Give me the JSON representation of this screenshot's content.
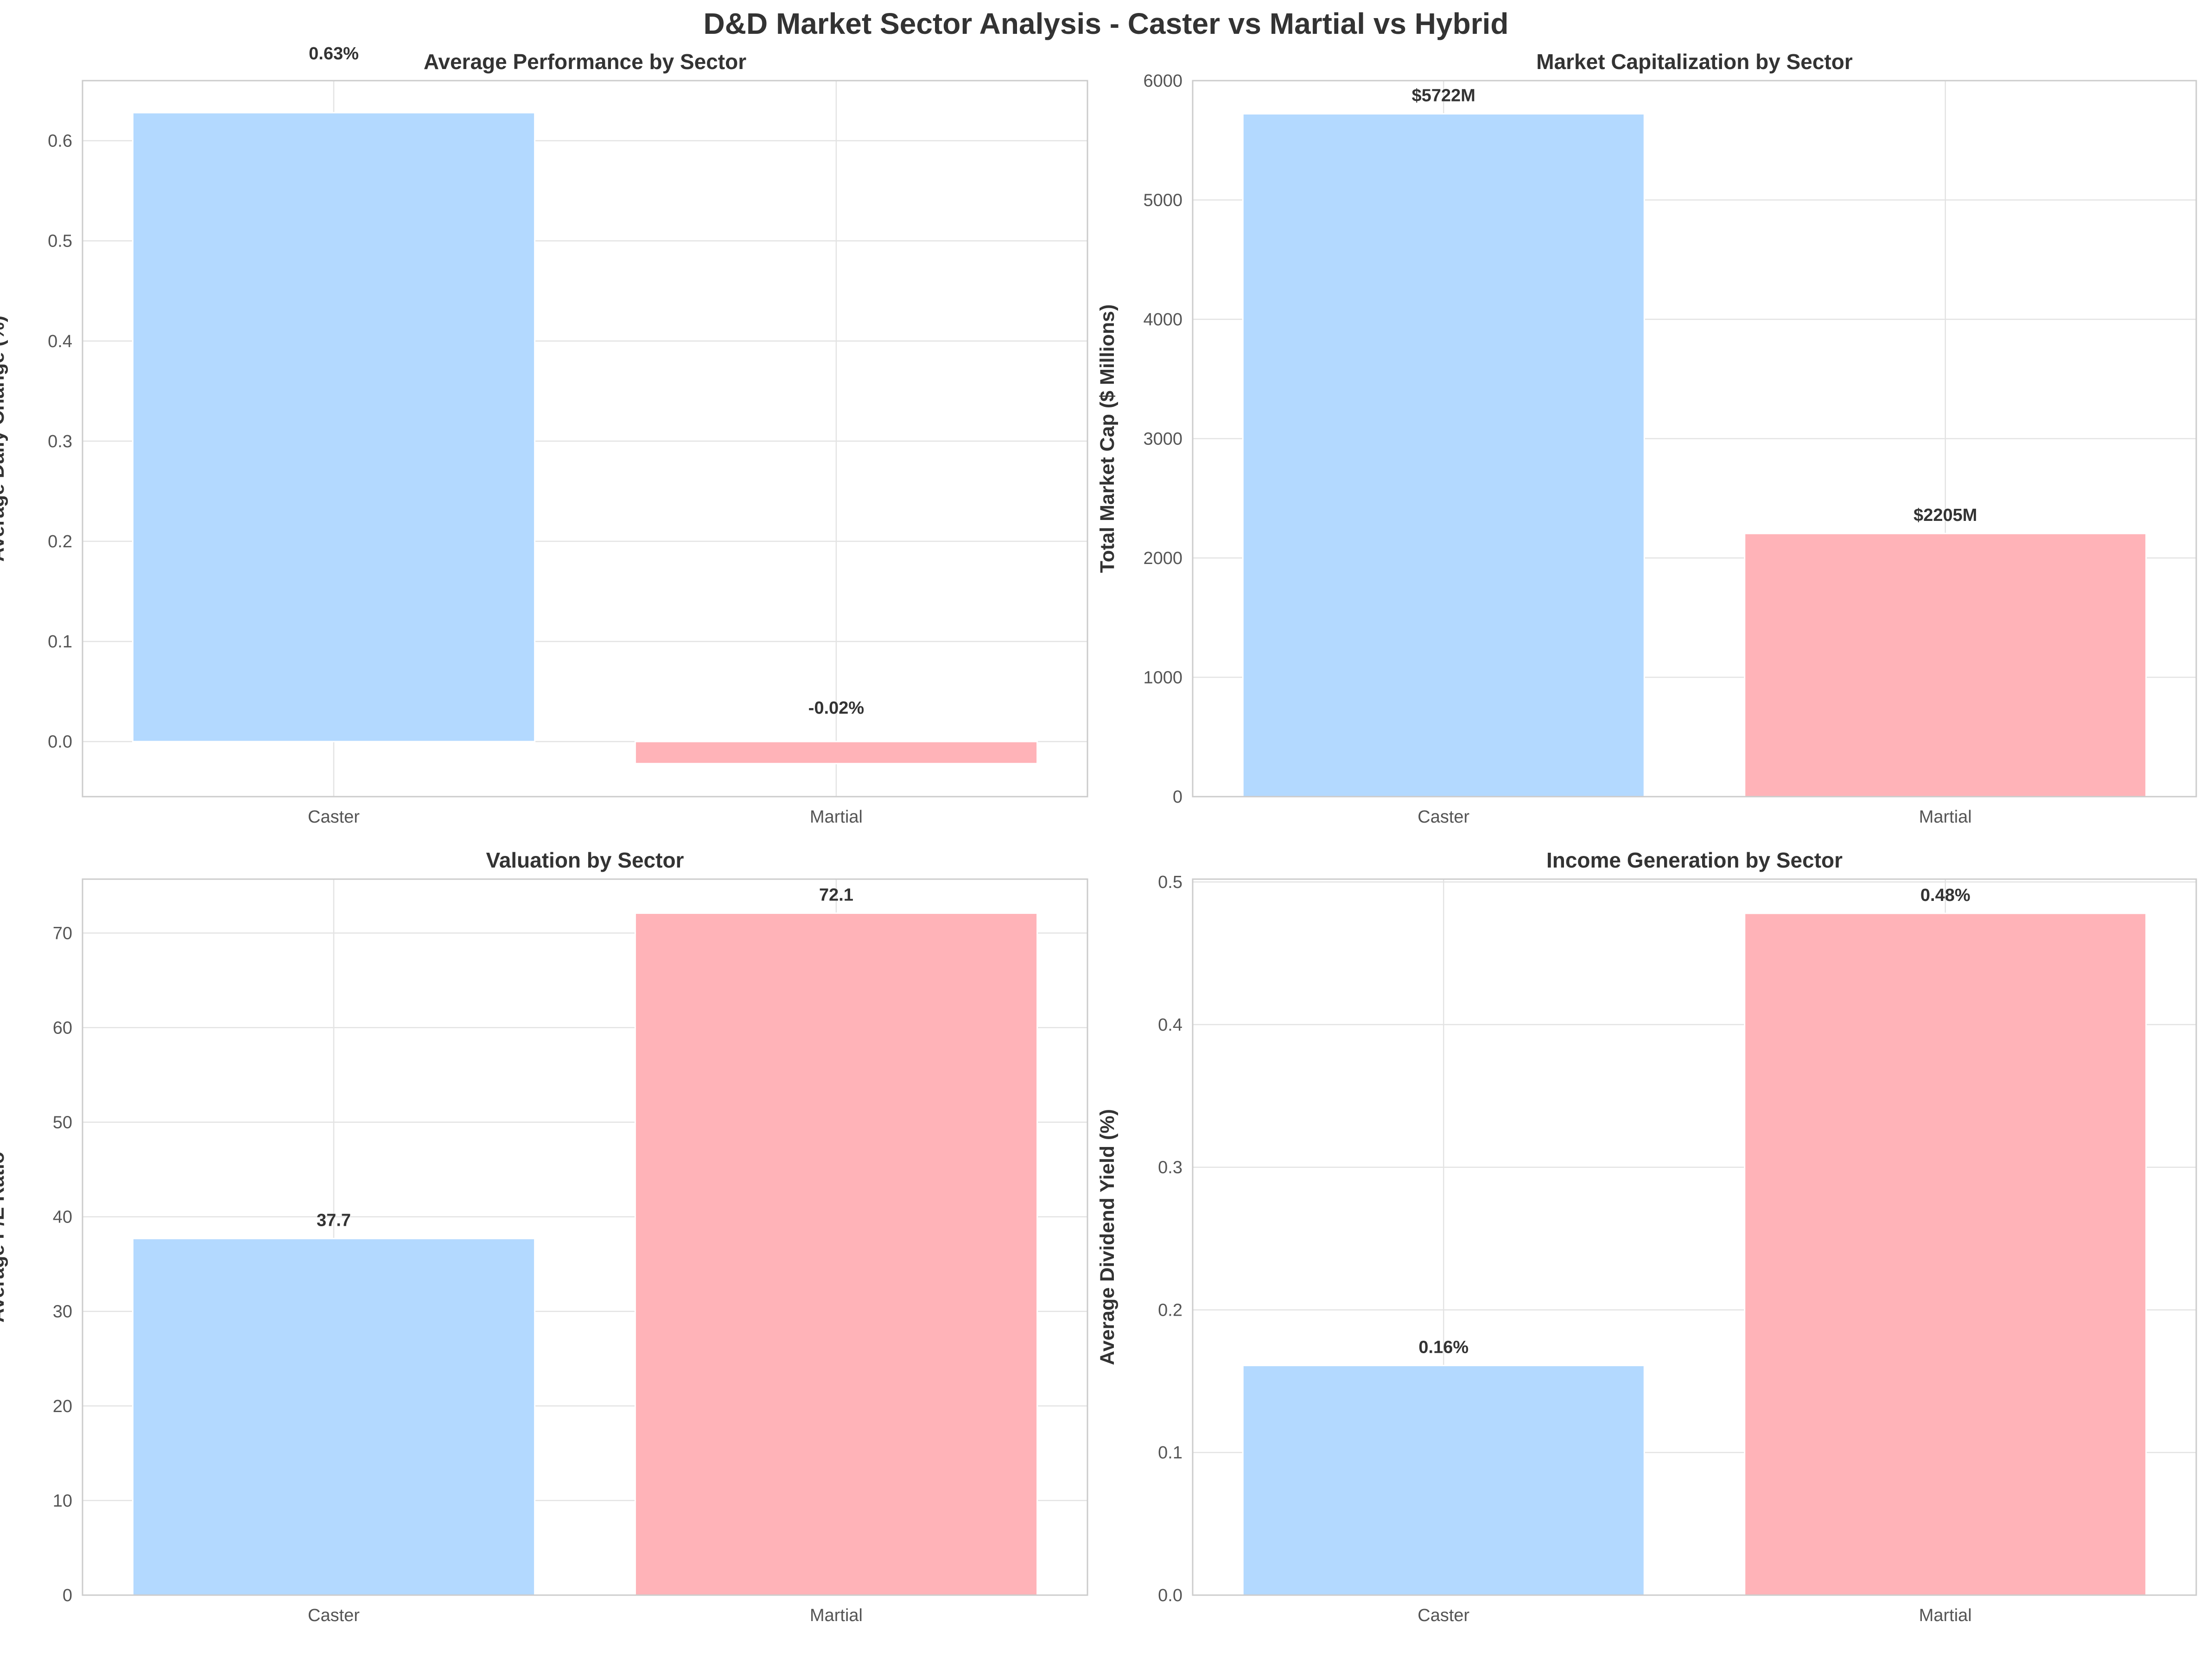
{
  "suptitle": "D&D Market Sector Analysis - Caster vs Martial vs Hybrid",
  "colors": {
    "caster": "#b3d9ff",
    "martial": "#ffb3b8"
  },
  "chart_data": [
    {
      "type": "bar",
      "title": "Average Performance by Sector",
      "xlabel": "",
      "ylabel": "Average Daily Change (%)",
      "categories": [
        "Caster",
        "Martial"
      ],
      "values": [
        0.628,
        -0.022
      ],
      "data_labels": [
        "0.63%",
        "-0.02%"
      ],
      "ylim": [
        -0.055,
        0.66
      ],
      "yticks": [
        0.0,
        0.1,
        0.2,
        0.3,
        0.4,
        0.5,
        0.6
      ],
      "ytick_labels": [
        "0.0",
        "0.1",
        "0.2",
        "0.3",
        "0.4",
        "0.5",
        "0.6"
      ],
      "grid": true
    },
    {
      "type": "bar",
      "title": "Market Capitalization by Sector",
      "xlabel": "",
      "ylabel": "Total Market Cap ($ Millions)",
      "categories": [
        "Caster",
        "Martial"
      ],
      "values": [
        5722,
        2205
      ],
      "data_labels": [
        "$5722M",
        "$2205M"
      ],
      "ylim": [
        0,
        6000
      ],
      "yticks": [
        0,
        1000,
        2000,
        3000,
        4000,
        5000,
        6000
      ],
      "ytick_labels": [
        "0",
        "1000",
        "2000",
        "3000",
        "4000",
        "5000",
        "6000"
      ],
      "grid": true
    },
    {
      "type": "bar",
      "title": "Valuation by Sector",
      "xlabel": "",
      "ylabel": "Average P/E Ratio",
      "categories": [
        "Caster",
        "Martial"
      ],
      "values": [
        37.7,
        72.1
      ],
      "data_labels": [
        "37.7",
        "72.1"
      ],
      "ylim": [
        0,
        75.7
      ],
      "yticks": [
        0,
        10,
        20,
        30,
        40,
        50,
        60,
        70
      ],
      "ytick_labels": [
        "0",
        "10",
        "20",
        "30",
        "40",
        "50",
        "60",
        "70"
      ],
      "grid": true
    },
    {
      "type": "bar",
      "title": "Income Generation by Sector",
      "xlabel": "",
      "ylabel": "Average Dividend Yield (%)",
      "categories": [
        "Caster",
        "Martial"
      ],
      "values": [
        0.161,
        0.478
      ],
      "data_labels": [
        "0.16%",
        "0.48%"
      ],
      "ylim": [
        0,
        0.502
      ],
      "yticks": [
        0.0,
        0.1,
        0.2,
        0.3,
        0.4,
        0.5
      ],
      "ytick_labels": [
        "0.0",
        "0.1",
        "0.2",
        "0.3",
        "0.4",
        "0.5"
      ],
      "grid": true
    }
  ]
}
